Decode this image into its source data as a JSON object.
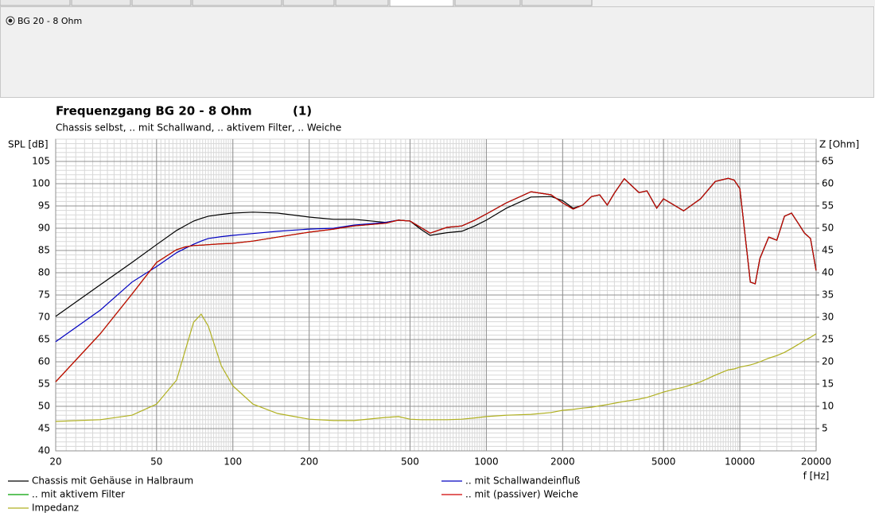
{
  "panel": {
    "radio_label": "BG 20 - 8 Ohm"
  },
  "chart_data": {
    "type": "line",
    "title": "Frequenzgang BG 20 - 8 Ohm",
    "plot_number": "(1)",
    "subtitle": "Chassis selbst, .. mit Schallwand, .. aktivem Filter, .. Weiche",
    "y_label": "SPL [dB]",
    "y2_label": "Z [Ohm]",
    "x_label": "f [Hz]",
    "xscale": "log",
    "grid": true,
    "xlim": [
      20,
      20000
    ],
    "xticks": [
      20,
      50,
      100,
      200,
      500,
      1000,
      2000,
      5000,
      10000,
      20000
    ],
    "ylim": [
      40,
      110
    ],
    "yticks": [
      40,
      45,
      50,
      55,
      60,
      65,
      70,
      75,
      80,
      85,
      90,
      95,
      100,
      105
    ],
    "y2lim": [
      0,
      70
    ],
    "y2ticks": [
      5,
      10,
      15,
      20,
      25,
      30,
      35,
      40,
      45,
      50,
      55,
      60,
      65
    ],
    "x": [
      20,
      30,
      40,
      50,
      60,
      65,
      70,
      75,
      80,
      90,
      100,
      120,
      150,
      200,
      250,
      300,
      400,
      450,
      500,
      550,
      600,
      700,
      800,
      900,
      1000,
      1200,
      1500,
      1800,
      2000,
      2200,
      2400,
      2600,
      2800,
      3000,
      3200,
      3500,
      4000,
      4300,
      4700,
      5000,
      5500,
      6000,
      7000,
      8000,
      9000,
      9500,
      10000,
      11000,
      11500,
      12000,
      13000,
      14000,
      15000,
      16000,
      17000,
      18000,
      19000,
      20000
    ],
    "series": [
      {
        "name": "Chassis mit Gehäuse in Halbraum",
        "color": "#000000",
        "values": [
          70.2,
          77.3,
          82.3,
          86.3,
          89.5,
          90.6,
          91.6,
          92.2,
          92.7,
          93.1,
          93.4,
          93.6,
          93.4,
          92.5,
          92.0,
          92.0,
          91.3,
          91.8,
          91.6,
          89.8,
          88.4,
          89.0,
          89.3,
          90.5,
          91.8,
          94.5,
          97.0,
          97.1,
          96.2,
          94.5,
          95.2,
          97.1,
          97.5,
          95.2,
          97.9,
          101.1,
          98.0,
          98.4,
          94.5,
          96.6,
          95.2,
          93.9,
          96.6,
          100.5,
          101.2,
          100.8,
          98.9,
          77.9,
          77.5,
          83.2,
          88.0,
          87.3,
          92.7,
          93.4,
          91.1,
          88.9,
          87.7,
          80.5
        ]
      },
      {
        "name": ".. mit Schallwandeinfluß",
        "color": "#0000c0",
        "values": [
          64.5,
          71.6,
          77.9,
          81.4,
          84.5,
          85.5,
          86.4,
          87.1,
          87.7,
          88.1,
          88.4,
          88.8,
          89.3,
          89.8,
          90.0,
          90.7,
          91.3,
          91.8,
          91.6,
          90.2,
          88.9,
          90.2,
          90.5,
          91.8,
          93.2,
          95.7,
          98.2,
          97.5,
          95.7,
          94.3,
          95.2,
          97.1,
          97.5,
          95.2,
          97.9,
          101.1,
          98.0,
          98.4,
          94.5,
          96.6,
          95.2,
          93.9,
          96.6,
          100.5,
          101.2,
          100.8,
          98.9,
          77.9,
          77.5,
          83.2,
          88.0,
          87.3,
          92.7,
          93.4,
          91.1,
          88.9,
          87.7,
          80.5
        ]
      },
      {
        "name": ".. mit aktivem Filter",
        "color": "#00a000",
        "values": [
          55.5,
          66.3,
          75.2,
          82.3,
          85.2,
          85.8,
          86.1,
          86.2,
          86.3,
          86.5,
          86.6,
          87.1,
          88.0,
          89.1,
          89.8,
          90.5,
          91.1,
          91.8,
          91.6,
          90.2,
          88.9,
          90.2,
          90.5,
          91.8,
          93.2,
          95.7,
          98.2,
          97.5,
          95.7,
          94.3,
          95.2,
          97.1,
          97.5,
          95.2,
          97.9,
          101.1,
          98.0,
          98.4,
          94.5,
          96.6,
          95.2,
          93.9,
          96.6,
          100.5,
          101.2,
          100.8,
          98.9,
          77.9,
          77.5,
          83.2,
          88.0,
          87.3,
          92.7,
          93.4,
          91.1,
          88.9,
          87.7,
          80.5
        ]
      },
      {
        "name": ".. mit (passiver) Weiche",
        "color": "#d00000",
        "values": [
          55.5,
          66.3,
          75.2,
          82.3,
          85.2,
          85.8,
          86.1,
          86.2,
          86.3,
          86.5,
          86.6,
          87.1,
          88.0,
          89.1,
          89.8,
          90.5,
          91.1,
          91.8,
          91.6,
          90.2,
          88.9,
          90.2,
          90.5,
          91.8,
          93.2,
          95.7,
          98.2,
          97.5,
          95.7,
          94.3,
          95.2,
          97.1,
          97.5,
          95.2,
          97.9,
          101.1,
          98.0,
          98.4,
          94.5,
          96.6,
          95.2,
          93.9,
          96.6,
          100.5,
          101.2,
          100.8,
          98.9,
          77.9,
          77.5,
          83.2,
          88.0,
          87.3,
          92.7,
          93.4,
          91.1,
          88.9,
          87.7,
          80.5
        ]
      },
      {
        "name": "Impedanz",
        "color": "#b0b020",
        "axis": "y2",
        "values": [
          6.6,
          7.0,
          8.0,
          10.5,
          15.9,
          22.7,
          28.9,
          30.7,
          28.0,
          19.1,
          14.6,
          10.5,
          8.4,
          7.1,
          6.8,
          6.8,
          7.5,
          7.7,
          7.1,
          7.0,
          7.0,
          7.0,
          7.1,
          7.4,
          7.7,
          8.0,
          8.2,
          8.6,
          9.1,
          9.3,
          9.6,
          9.8,
          10.1,
          10.4,
          10.7,
          11.1,
          11.6,
          12.0,
          12.7,
          13.2,
          13.8,
          14.3,
          15.5,
          17.0,
          18.2,
          18.4,
          18.8,
          19.3,
          19.6,
          20.0,
          20.8,
          21.4,
          22.1,
          23.0,
          23.9,
          24.8,
          25.5,
          26.3
        ]
      }
    ]
  }
}
